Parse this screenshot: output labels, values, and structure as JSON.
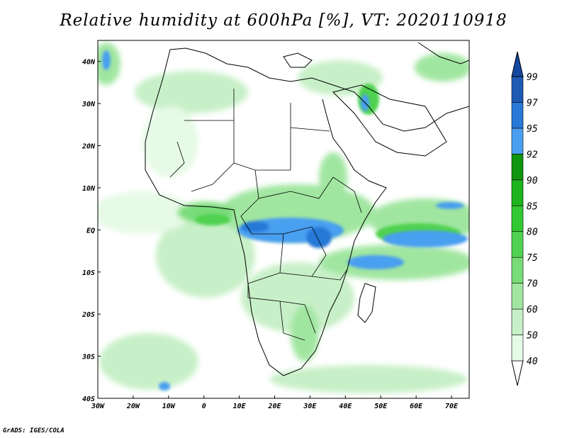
{
  "title": "Relative humidity at 600hPa [%], VT: 2020110918",
  "credit": "GrADS: IGES/COLA",
  "map": {
    "lon_range": [
      -30,
      75
    ],
    "lat_range": [
      -40,
      45
    ],
    "lon_ticks": [
      "30W",
      "20W",
      "10W",
      "0",
      "10E",
      "20E",
      "30E",
      "40E",
      "50E",
      "60E",
      "70E"
    ],
    "lat_ticks": [
      "40N",
      "30N",
      "20N",
      "10N",
      "EQ",
      "10S",
      "20S",
      "30S",
      "40S"
    ]
  },
  "colorbar": {
    "levels": [
      "40",
      "50",
      "60",
      "70",
      "75",
      "80",
      "85",
      "90",
      "92",
      "95",
      "97",
      "99"
    ],
    "colors": [
      "#ffffff",
      "#e6fae6",
      "#c8f0c8",
      "#a0e6a0",
      "#78dc78",
      "#50d250",
      "#32c832",
      "#1eb41e",
      "#0f960f",
      "#4a9ff0",
      "#2878d7",
      "#1e5ab4",
      "#1448a0"
    ]
  }
}
